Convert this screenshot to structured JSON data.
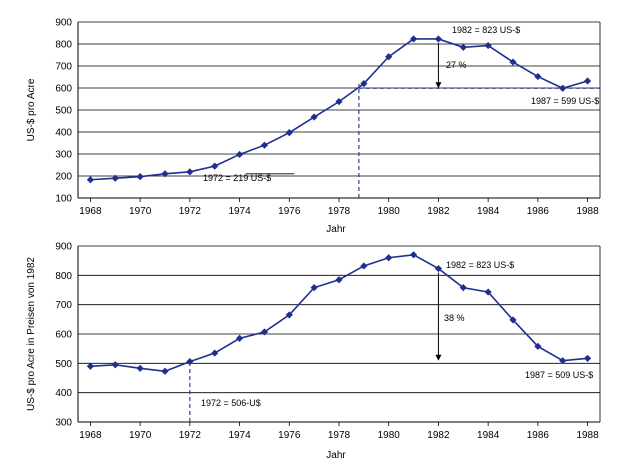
{
  "chart_data": [
    {
      "type": "line",
      "xlabel": "Jahr",
      "ylabel": "US-$ pro Acre",
      "xlim": [
        1967.5,
        1988.5
      ],
      "ylim": [
        100,
        900
      ],
      "yticks": [
        100,
        200,
        300,
        400,
        500,
        600,
        700,
        800,
        900
      ],
      "xticks": [
        1968,
        1970,
        1972,
        1974,
        1976,
        1978,
        1980,
        1982,
        1984,
        1986,
        1988
      ],
      "grid": "horizontal",
      "series_color": "#1f2f8f",
      "series": [
        {
          "x": [
            1968,
            1969,
            1970,
            1971,
            1972,
            1973,
            1974,
            1975,
            1976,
            1977,
            1978,
            1979,
            1980,
            1981,
            1982,
            1983,
            1984,
            1985,
            1986,
            1987,
            1988
          ],
          "values": [
            183,
            190,
            197,
            210,
            219,
            245,
            298,
            340,
            397,
            468,
            538,
            620,
            742,
            823,
            823,
            785,
            793,
            718,
            652,
            599,
            632
          ]
        }
      ],
      "annotations": {
        "peak": "1982 = 823 US-$",
        "trough": "1987 = 599 US-$",
        "start": "1972 = 219 US-$",
        "drop": "27 %"
      }
    },
    {
      "type": "line",
      "xlabel": "Jahr",
      "ylabel": "US-$ pro Acre in Preisen von 1982",
      "xlim": [
        1967.5,
        1988.5
      ],
      "ylim": [
        300,
        900
      ],
      "yticks": [
        300,
        400,
        500,
        600,
        700,
        800,
        900
      ],
      "xticks": [
        1968,
        1970,
        1972,
        1974,
        1976,
        1978,
        1980,
        1982,
        1984,
        1986,
        1988
      ],
      "grid": "horizontal",
      "series_color": "#1f2f8f",
      "series": [
        {
          "x": [
            1968,
            1969,
            1970,
            1971,
            1972,
            1973,
            1974,
            1975,
            1976,
            1977,
            1978,
            1979,
            1980,
            1981,
            1982,
            1983,
            1984,
            1985,
            1986,
            1987,
            1988
          ],
          "values": [
            490,
            495,
            483,
            473,
            506,
            535,
            585,
            607,
            665,
            758,
            785,
            832,
            860,
            870,
            823,
            758,
            743,
            648,
            558,
            509,
            517
          ]
        }
      ],
      "annotations": {
        "peak": "1982 = 823 US-$",
        "trough": "1987 = 509 US-$",
        "start": "1972 = 506-U$",
        "drop": "38 %"
      }
    }
  ]
}
